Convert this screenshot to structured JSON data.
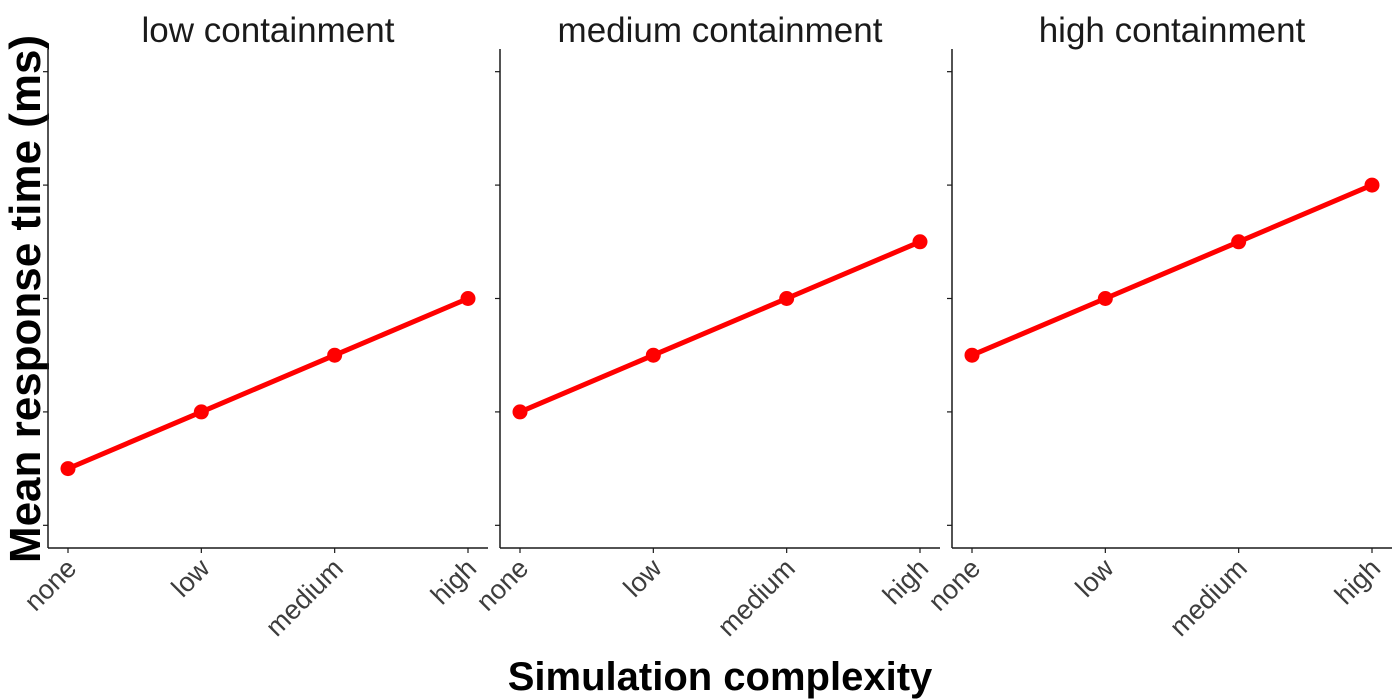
{
  "chart_data": {
    "type": "line",
    "xlabel": "Simulation complexity",
    "ylabel": "Mean response time (ms)",
    "categories": [
      "none",
      "low",
      "medium",
      "high"
    ],
    "y_tick_labels_shown": false,
    "ylim": [
      0.6,
      9.4
    ],
    "y_ticks": [
      1,
      3,
      5,
      7,
      9
    ],
    "grid": false,
    "line_color": "#ff0000",
    "panels": [
      {
        "title": "low containment",
        "values": [
          2,
          3,
          4,
          5
        ]
      },
      {
        "title": "medium containment",
        "values": [
          3,
          4,
          5,
          6
        ]
      },
      {
        "title": "high containment",
        "values": [
          4,
          5,
          6,
          7
        ]
      }
    ]
  }
}
